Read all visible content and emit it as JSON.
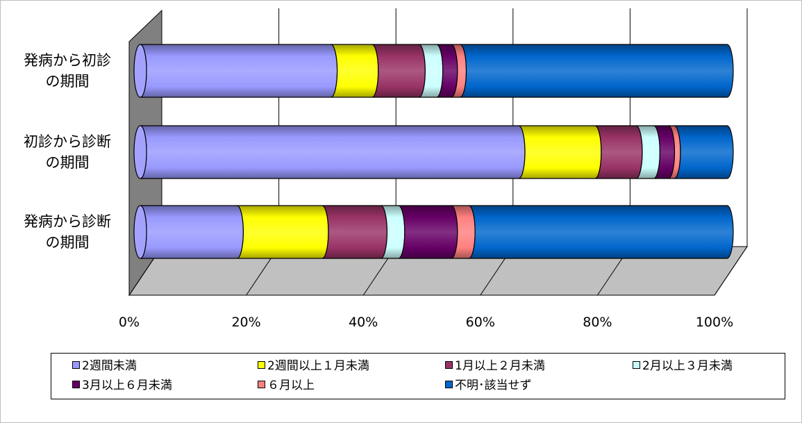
{
  "chart_data": {
    "type": "bar",
    "orientation": "horizontal",
    "stacked": "percent",
    "style": "3d-cylinder",
    "categories": [
      "発病から初診\nの期間",
      "初診から診断\nの期間",
      "発病から診断\nの期間"
    ],
    "series": [
      {
        "name": "2週間未満",
        "color": "#9999ff",
        "values": [
          32.5,
          64.5,
          16.5
        ]
      },
      {
        "name": "2週間以上１月未満",
        "color": "#ffff00",
        "values": [
          7,
          13,
          14.5
        ]
      },
      {
        "name": "1月以上２月未満",
        "color": "#993366",
        "values": [
          8,
          7,
          10
        ]
      },
      {
        "name": "2月以上３月未満",
        "color": "#ccffff",
        "values": [
          3,
          3,
          3
        ]
      },
      {
        "name": "3月以上６月未満",
        "color": "#660066",
        "values": [
          2.5,
          2.5,
          9
        ]
      },
      {
        "name": "６月以上",
        "color": "#ff8080",
        "values": [
          1.5,
          1,
          3
        ]
      },
      {
        "name": "不明･該当せず",
        "color": "#0066cc",
        "values": [
          45.5,
          9,
          44
        ]
      }
    ],
    "x_ticks": [
      "0%",
      "20%",
      "40%",
      "60%",
      "80%",
      "100%"
    ],
    "xlim": [
      0,
      100
    ],
    "grid": true,
    "legend_position": "bottom"
  }
}
